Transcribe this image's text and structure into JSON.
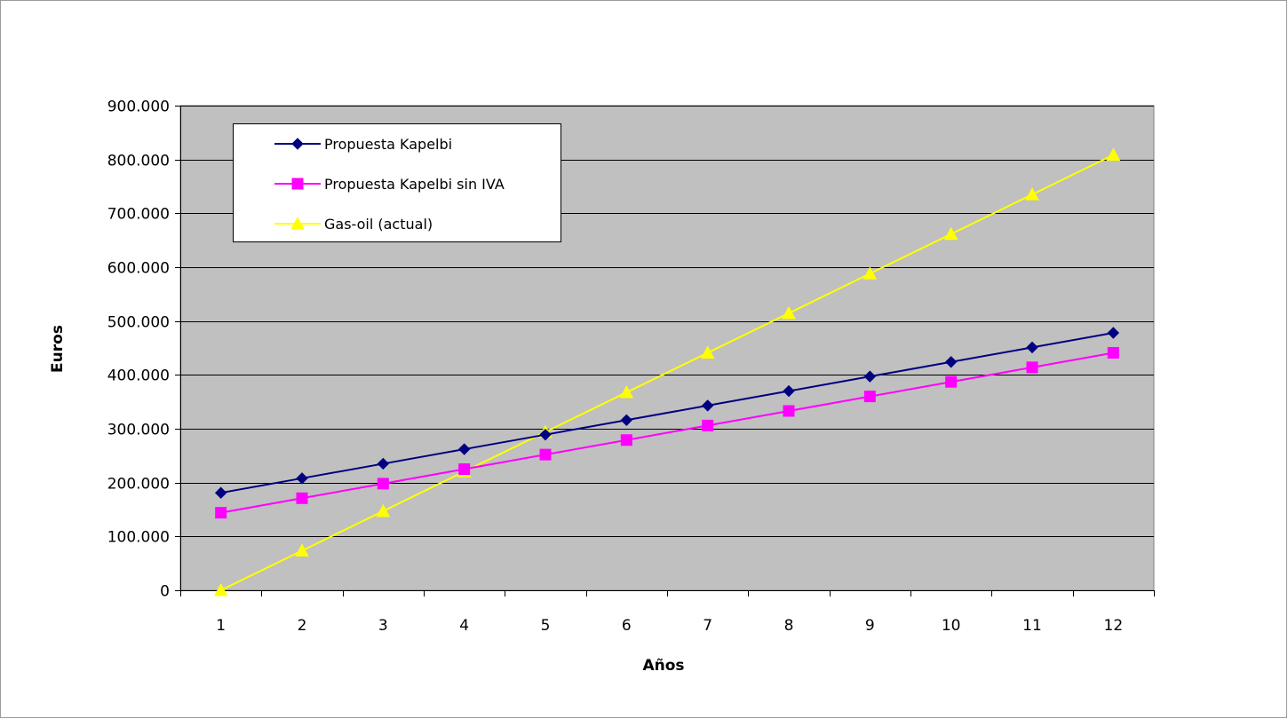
{
  "chart_data": {
    "type": "line",
    "x": [
      1,
      2,
      3,
      4,
      5,
      6,
      7,
      8,
      9,
      10,
      11,
      12
    ],
    "xlabel": "Años",
    "ylabel": "Euros",
    "ylim": [
      0,
      900000
    ],
    "yticks": [
      0,
      100000,
      200000,
      300000,
      400000,
      500000,
      600000,
      700000,
      800000,
      900000
    ],
    "ytick_labels": [
      "0",
      "100.000",
      "200.000",
      "300.000",
      "400.000",
      "500.000",
      "600.000",
      "700.000",
      "800.000",
      "900.000"
    ],
    "xtick_labels": [
      "1",
      "2",
      "3",
      "4",
      "5",
      "6",
      "7",
      "8",
      "9",
      "10",
      "11",
      "12"
    ],
    "grid": "horizontal",
    "plot_background": "#c0c0c0",
    "legend_position": "top-left",
    "series": [
      {
        "name": "Propuesta Kapelbi",
        "color": "#000080",
        "marker": "diamond",
        "values": [
          181000,
          208000,
          235000,
          262000,
          289000,
          316000,
          343000,
          370000,
          397000,
          424000,
          451000,
          478000
        ]
      },
      {
        "name": "Propuesta Kapelbi sin IVA",
        "color": "#ff00ff",
        "marker": "square",
        "values": [
          144000,
          171000,
          198000,
          225000,
          252000,
          279000,
          306000,
          333000,
          360000,
          387000,
          414000,
          441000
        ]
      },
      {
        "name": "Gas-oil (actual)",
        "color": "#ffff00",
        "marker": "triangle",
        "values": [
          0,
          73500,
          147000,
          220500,
          294000,
          367500,
          441000,
          514500,
          588000,
          661500,
          735000,
          808500
        ]
      }
    ]
  }
}
